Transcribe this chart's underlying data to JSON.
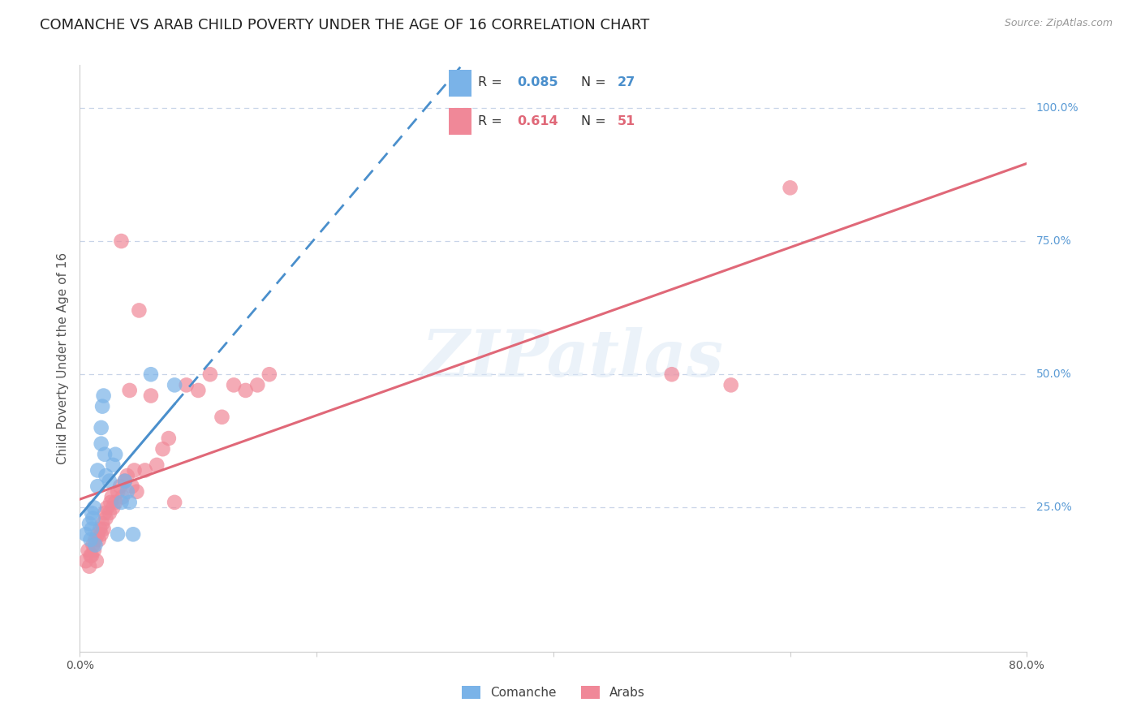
{
  "title": "COMANCHE VS ARAB CHILD POVERTY UNDER THE AGE OF 16 CORRELATION CHART",
  "source": "Source: ZipAtlas.com",
  "ylabel": "Child Poverty Under the Age of 16",
  "xlim": [
    0.0,
    0.8
  ],
  "ylim": [
    -0.02,
    1.08
  ],
  "ytick_positions": [
    0.25,
    0.5,
    0.75,
    1.0
  ],
  "ytick_labels": [
    "25.0%",
    "50.0%",
    "75.0%",
    "100.0%"
  ],
  "comanche_color": "#7ab3e8",
  "arab_color": "#f08898",
  "comanche_line_color": "#4a8fcc",
  "arab_line_color": "#e06878",
  "comanche_x": [
    0.005,
    0.008,
    0.009,
    0.01,
    0.01,
    0.011,
    0.012,
    0.013,
    0.015,
    0.015,
    0.018,
    0.018,
    0.019,
    0.02,
    0.021,
    0.022,
    0.025,
    0.028,
    0.03,
    0.032,
    0.035,
    0.038,
    0.04,
    0.042,
    0.045,
    0.06,
    0.08
  ],
  "comanche_y": [
    0.2,
    0.22,
    0.19,
    0.24,
    0.21,
    0.23,
    0.25,
    0.18,
    0.29,
    0.32,
    0.37,
    0.4,
    0.44,
    0.46,
    0.35,
    0.31,
    0.3,
    0.33,
    0.35,
    0.2,
    0.26,
    0.3,
    0.28,
    0.26,
    0.2,
    0.5,
    0.48
  ],
  "arab_x": [
    0.005,
    0.007,
    0.008,
    0.009,
    0.01,
    0.011,
    0.012,
    0.013,
    0.014,
    0.015,
    0.016,
    0.017,
    0.018,
    0.019,
    0.02,
    0.021,
    0.022,
    0.023,
    0.025,
    0.026,
    0.027,
    0.028,
    0.03,
    0.032,
    0.034,
    0.035,
    0.036,
    0.038,
    0.04,
    0.042,
    0.044,
    0.046,
    0.048,
    0.05,
    0.055,
    0.06,
    0.065,
    0.07,
    0.075,
    0.08,
    0.09,
    0.1,
    0.11,
    0.12,
    0.13,
    0.14,
    0.15,
    0.16,
    0.5,
    0.55,
    0.6
  ],
  "arab_y": [
    0.15,
    0.17,
    0.14,
    0.16,
    0.16,
    0.18,
    0.17,
    0.19,
    0.15,
    0.2,
    0.19,
    0.21,
    0.2,
    0.22,
    0.21,
    0.24,
    0.23,
    0.25,
    0.24,
    0.26,
    0.27,
    0.25,
    0.26,
    0.28,
    0.29,
    0.75,
    0.27,
    0.3,
    0.31,
    0.47,
    0.29,
    0.32,
    0.28,
    0.62,
    0.32,
    0.46,
    0.33,
    0.36,
    0.38,
    0.26,
    0.48,
    0.47,
    0.5,
    0.42,
    0.48,
    0.47,
    0.48,
    0.5,
    0.5,
    0.48,
    0.85
  ],
  "watermark": "ZIPatlas",
  "background_color": "#ffffff",
  "grid_color": "#c8d4e8",
  "right_label_color": "#5b9bd5",
  "title_fontsize": 13,
  "ylabel_fontsize": 11,
  "tick_fontsize": 10,
  "legend_R_com_color": "#4a8fcc",
  "legend_N_com_color": "#4a8fcc",
  "legend_R_arab_color": "#e06878",
  "legend_N_arab_color": "#e06878"
}
